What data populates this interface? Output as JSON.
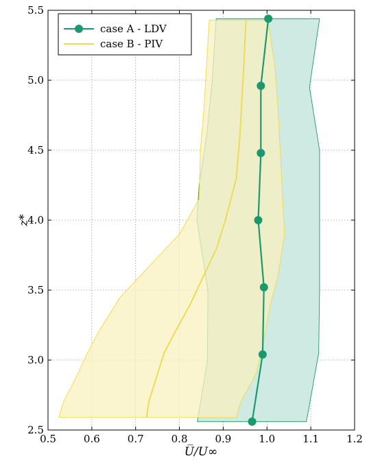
{
  "chart_data": {
    "type": "line",
    "xlabel": "U̅/U∞",
    "ylabel": "z*",
    "xlim": [
      0.5,
      1.2
    ],
    "ylim": [
      2.5,
      5.5
    ],
    "xticks": [
      "0.5",
      "0.6",
      "0.7",
      "0.8",
      "0.9",
      "1.0",
      "1.1",
      "1.2"
    ],
    "yticks": [
      "2.5",
      "3.0",
      "3.5",
      "4.0",
      "4.5",
      "5.0",
      "5.5"
    ],
    "grid": true,
    "legend_position": "top-left",
    "series": [
      {
        "name": "case A - LDV",
        "color": "#1a9a6c",
        "band_color": "#cfeae3",
        "marker": "circle",
        "points": [
          [
            1.003,
            5.44
          ],
          [
            0.986,
            4.96
          ],
          [
            0.986,
            4.48
          ],
          [
            0.98,
            4.0
          ],
          [
            0.993,
            3.52
          ],
          [
            0.99,
            3.04
          ],
          [
            0.966,
            2.56
          ]
        ],
        "band_lower": [
          [
            0.884,
            5.44
          ],
          [
            0.875,
            5.0
          ],
          [
            0.862,
            4.6
          ],
          [
            0.845,
            4.25
          ],
          [
            0.84,
            4.0
          ],
          [
            0.865,
            3.5
          ],
          [
            0.864,
            3.0
          ],
          [
            0.841,
            2.56
          ]
        ],
        "band_upper": [
          [
            1.12,
            5.44
          ],
          [
            1.097,
            4.95
          ],
          [
            1.12,
            4.5
          ],
          [
            1.12,
            4.0
          ],
          [
            1.12,
            3.5
          ],
          [
            1.118,
            3.05
          ],
          [
            1.09,
            2.56
          ]
        ]
      },
      {
        "name": "case B - PIV",
        "color": "#eed94b",
        "band_color": "#f8f0bf",
        "marker": "none",
        "points": [
          [
            0.952,
            5.43
          ],
          [
            0.947,
            5.1
          ],
          [
            0.938,
            4.6
          ],
          [
            0.93,
            4.3
          ],
          [
            0.905,
            4.0
          ],
          [
            0.885,
            3.8
          ],
          [
            0.855,
            3.6
          ],
          [
            0.825,
            3.4
          ],
          [
            0.79,
            3.2
          ],
          [
            0.765,
            3.05
          ],
          [
            0.745,
            2.85
          ],
          [
            0.73,
            2.7
          ],
          [
            0.725,
            2.59
          ]
        ],
        "band_lower": [
          [
            0.868,
            5.43
          ],
          [
            0.862,
            5.1
          ],
          [
            0.856,
            4.8
          ],
          [
            0.848,
            4.5
          ],
          [
            0.845,
            4.15
          ],
          [
            0.8,
            3.9
          ],
          [
            0.74,
            3.7
          ],
          [
            0.665,
            3.45
          ],
          [
            0.615,
            3.2
          ],
          [
            0.59,
            3.05
          ],
          [
            0.56,
            2.85
          ],
          [
            0.535,
            2.7
          ],
          [
            0.525,
            2.59
          ]
        ],
        "band_upper": [
          [
            1.002,
            5.43
          ],
          [
            1.018,
            5.1
          ],
          [
            1.025,
            4.8
          ],
          [
            1.03,
            4.5
          ],
          [
            1.035,
            4.2
          ],
          [
            1.04,
            3.9
          ],
          [
            1.025,
            3.6
          ],
          [
            1.008,
            3.4
          ],
          [
            0.99,
            3.1
          ],
          [
            0.975,
            2.9
          ],
          [
            0.94,
            2.7
          ],
          [
            0.93,
            2.59
          ]
        ]
      }
    ]
  }
}
